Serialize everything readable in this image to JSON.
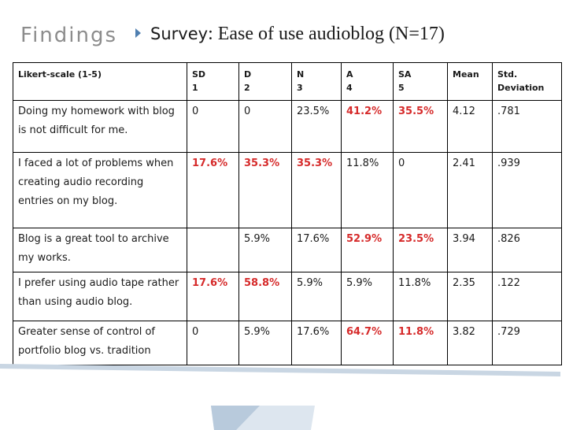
{
  "slide": {
    "title": "Findings",
    "subtitle_lead": "Survey",
    "subtitle_rest": ": Ease of use audioblog (N=17)"
  },
  "colors": {
    "highlight": "#d62b2b",
    "bullet": "#4f7fb0",
    "title": "#8c8c8c"
  },
  "table": {
    "headers": [
      {
        "l1": "Likert-scale (1-5)",
        "l2": ""
      },
      {
        "l1": "SD",
        "l2": "1"
      },
      {
        "l1": "D",
        "l2": "2"
      },
      {
        "l1": "N",
        "l2": "3"
      },
      {
        "l1": "A",
        "l2": "4"
      },
      {
        "l1": "SA",
        "l2": "5"
      },
      {
        "l1": "Mean",
        "l2": ""
      },
      {
        "l1": "Std.",
        "l2": "Deviation"
      }
    ],
    "rows": [
      {
        "statement": "Doing my homework with blog is not difficult for me.",
        "cells": [
          "0",
          "0",
          "23.5%",
          "41.2%",
          "35.5%",
          "4.12",
          ".781"
        ],
        "highlight": [
          3,
          4
        ]
      },
      {
        "statement": "I faced a lot of problems when creating audio recording entries on my blog.",
        "cells": [
          "17.6%",
          "35.3%",
          "35.3%",
          "11.8%",
          "0",
          "2.41",
          ".939"
        ],
        "highlight": [
          0,
          1,
          2
        ]
      },
      {
        "statement": "Blog is a great tool to archive my works.",
        "cells": [
          "",
          "5.9%",
          "17.6%",
          "52.9%",
          "23.5%",
          "3.94",
          ".826"
        ],
        "highlight": [
          3,
          4
        ]
      },
      {
        "statement": "I prefer using audio tape rather than using audio blog.",
        "cells": [
          "17.6%",
          "58.8%",
          "5.9%",
          "5.9%",
          "11.8%",
          "2.35",
          ".122"
        ],
        "highlight": [
          0,
          1
        ]
      },
      {
        "statement": "Greater sense of control of portfolio blog vs. tradition",
        "cells": [
          "0",
          "5.9%",
          "17.6%",
          "64.7%",
          "11.8%",
          "3.82",
          ".729"
        ],
        "highlight": [
          3,
          4
        ]
      }
    ]
  }
}
